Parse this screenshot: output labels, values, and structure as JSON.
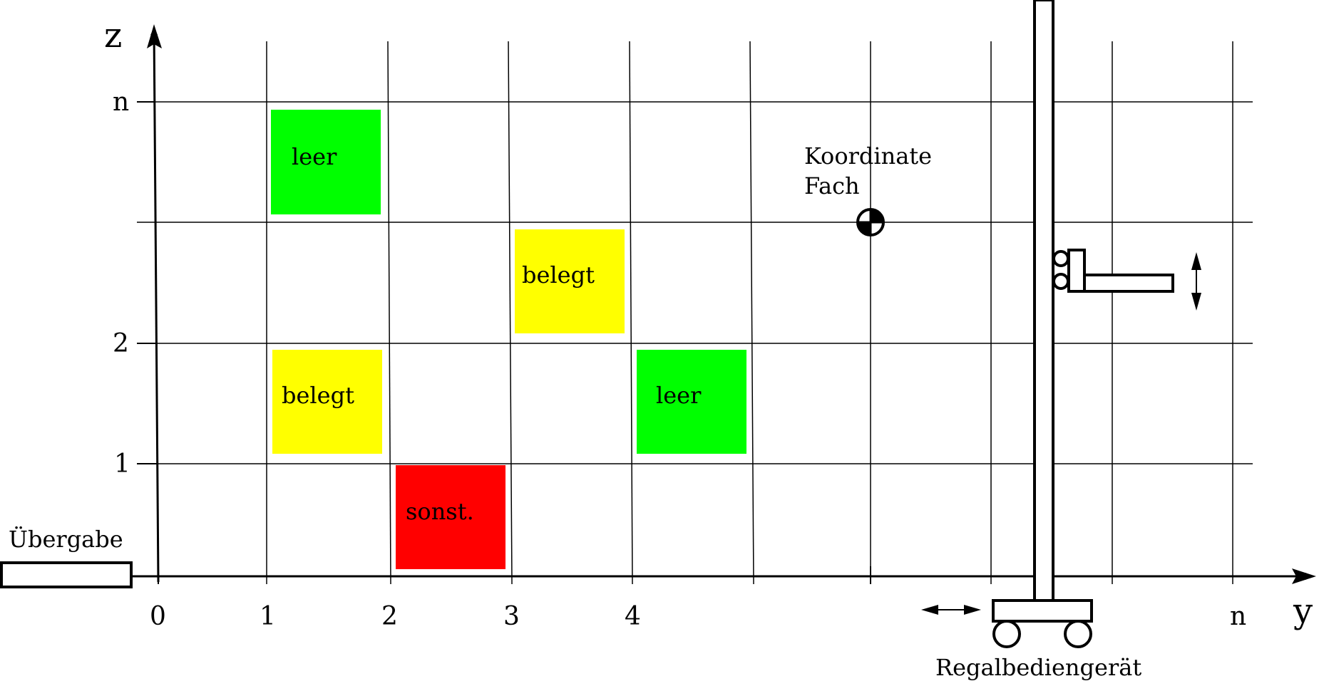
{
  "axes": {
    "z_title": "z",
    "y_title": "y",
    "z_ticks": [
      "n",
      "2",
      "1"
    ],
    "y_ticks": [
      "0",
      "1",
      "2",
      "3",
      "4",
      "n"
    ]
  },
  "cells": [
    {
      "label": "leer",
      "color": "#00FF00"
    },
    {
      "label": "belegt",
      "color": "#FFFF00"
    },
    {
      "label": "belegt",
      "color": "#FFFF00"
    },
    {
      "label": "leer",
      "color": "#00FF00"
    },
    {
      "label": "sonst.",
      "color": "#FF0000"
    }
  ],
  "annotations": {
    "koordinate_line1": "Koordinate",
    "koordinate_line2": "Fach",
    "uebergabe": "Übergabe",
    "regalbediengeraet": "Regalbediengerät"
  },
  "icons": [
    "coordinate-marker-icon",
    "double-arrow-horizontal-icon",
    "double-arrow-vertical-icon",
    "stacker-crane-icon"
  ]
}
